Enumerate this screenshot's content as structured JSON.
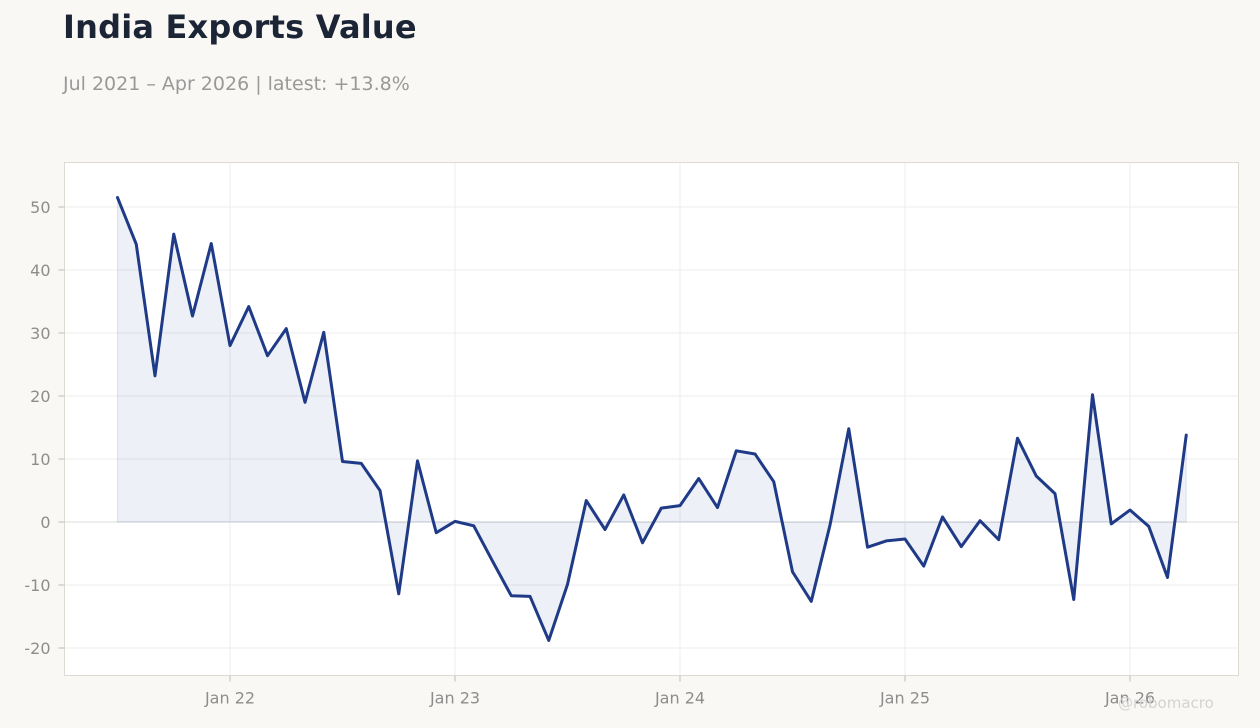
{
  "title": "India Exports Value",
  "subtitle": "Jul 2021 – Apr 2026 | latest: +13.8%",
  "watermark": "@robomacro",
  "colors": {
    "line": "#1f3a87",
    "fill": "#1f3a87",
    "grid": "#ececec",
    "zero_line": "#dddddd",
    "plot_border": "#dcdad2",
    "tick_label": "#8d8d8d"
  },
  "chart_data": {
    "type": "area",
    "x_start": "2021-07",
    "x_end": "2026-04",
    "x_ticks": [
      {
        "date": "2022-01",
        "label": "Jan 22"
      },
      {
        "date": "2023-01",
        "label": "Jan 23"
      },
      {
        "date": "2024-01",
        "label": "Jan 24"
      },
      {
        "date": "2025-01",
        "label": "Jan 25"
      },
      {
        "date": "2026-01",
        "label": "Jan 26"
      }
    ],
    "y_ticks": [
      50,
      40,
      30,
      20,
      10,
      0,
      -10,
      -20
    ],
    "ylim": [
      -24,
      57
    ],
    "grid": true,
    "legend": "none",
    "series": [
      {
        "x": [
          "2021-07",
          "2021-08",
          "2021-09",
          "2021-10",
          "2021-11",
          "2021-12",
          "2022-01",
          "2022-02",
          "2022-03",
          "2022-04",
          "2022-05",
          "2022-06",
          "2022-07",
          "2022-08",
          "2022-09",
          "2022-10",
          "2022-11",
          "2022-12",
          "2023-01",
          "2023-02",
          "2023-03",
          "2023-04",
          "2023-05",
          "2023-06",
          "2023-07",
          "2023-08",
          "2023-09",
          "2023-10",
          "2023-11",
          "2023-12",
          "2024-01",
          "2024-02",
          "2024-03",
          "2024-04",
          "2024-05",
          "2024-06",
          "2024-07",
          "2024-08",
          "2024-09",
          "2024-10",
          "2024-11",
          "2024-12",
          "2025-01",
          "2025-02",
          "2025-03",
          "2025-04",
          "2025-05",
          "2025-06",
          "2025-07",
          "2025-08",
          "2025-09",
          "2025-10",
          "2025-11",
          "2025-12",
          "2026-01",
          "2026-02",
          "2026-03",
          "2026-04"
        ],
        "values": [
          51.5,
          44.1,
          23.2,
          45.7,
          32.7,
          44.2,
          28.0,
          34.2,
          26.4,
          30.7,
          19.0,
          30.1,
          9.6,
          9.3,
          5.0,
          -11.4,
          9.7,
          -1.7,
          0.1,
          -0.6,
          -6.2,
          -11.7,
          -11.8,
          -18.8,
          -9.9,
          3.4,
          -1.2,
          4.3,
          -3.3,
          2.2,
          2.6,
          6.9,
          2.3,
          11.3,
          10.8,
          6.4,
          -7.9,
          -12.6,
          -0.5,
          14.8,
          -4.0,
          -3.0,
          -2.7,
          -7.0,
          0.8,
          -3.9,
          0.2,
          -2.8,
          13.3,
          7.3,
          4.5,
          -12.3,
          20.2,
          -0.3,
          1.9,
          -0.7,
          -8.8,
          13.8
        ]
      }
    ]
  }
}
